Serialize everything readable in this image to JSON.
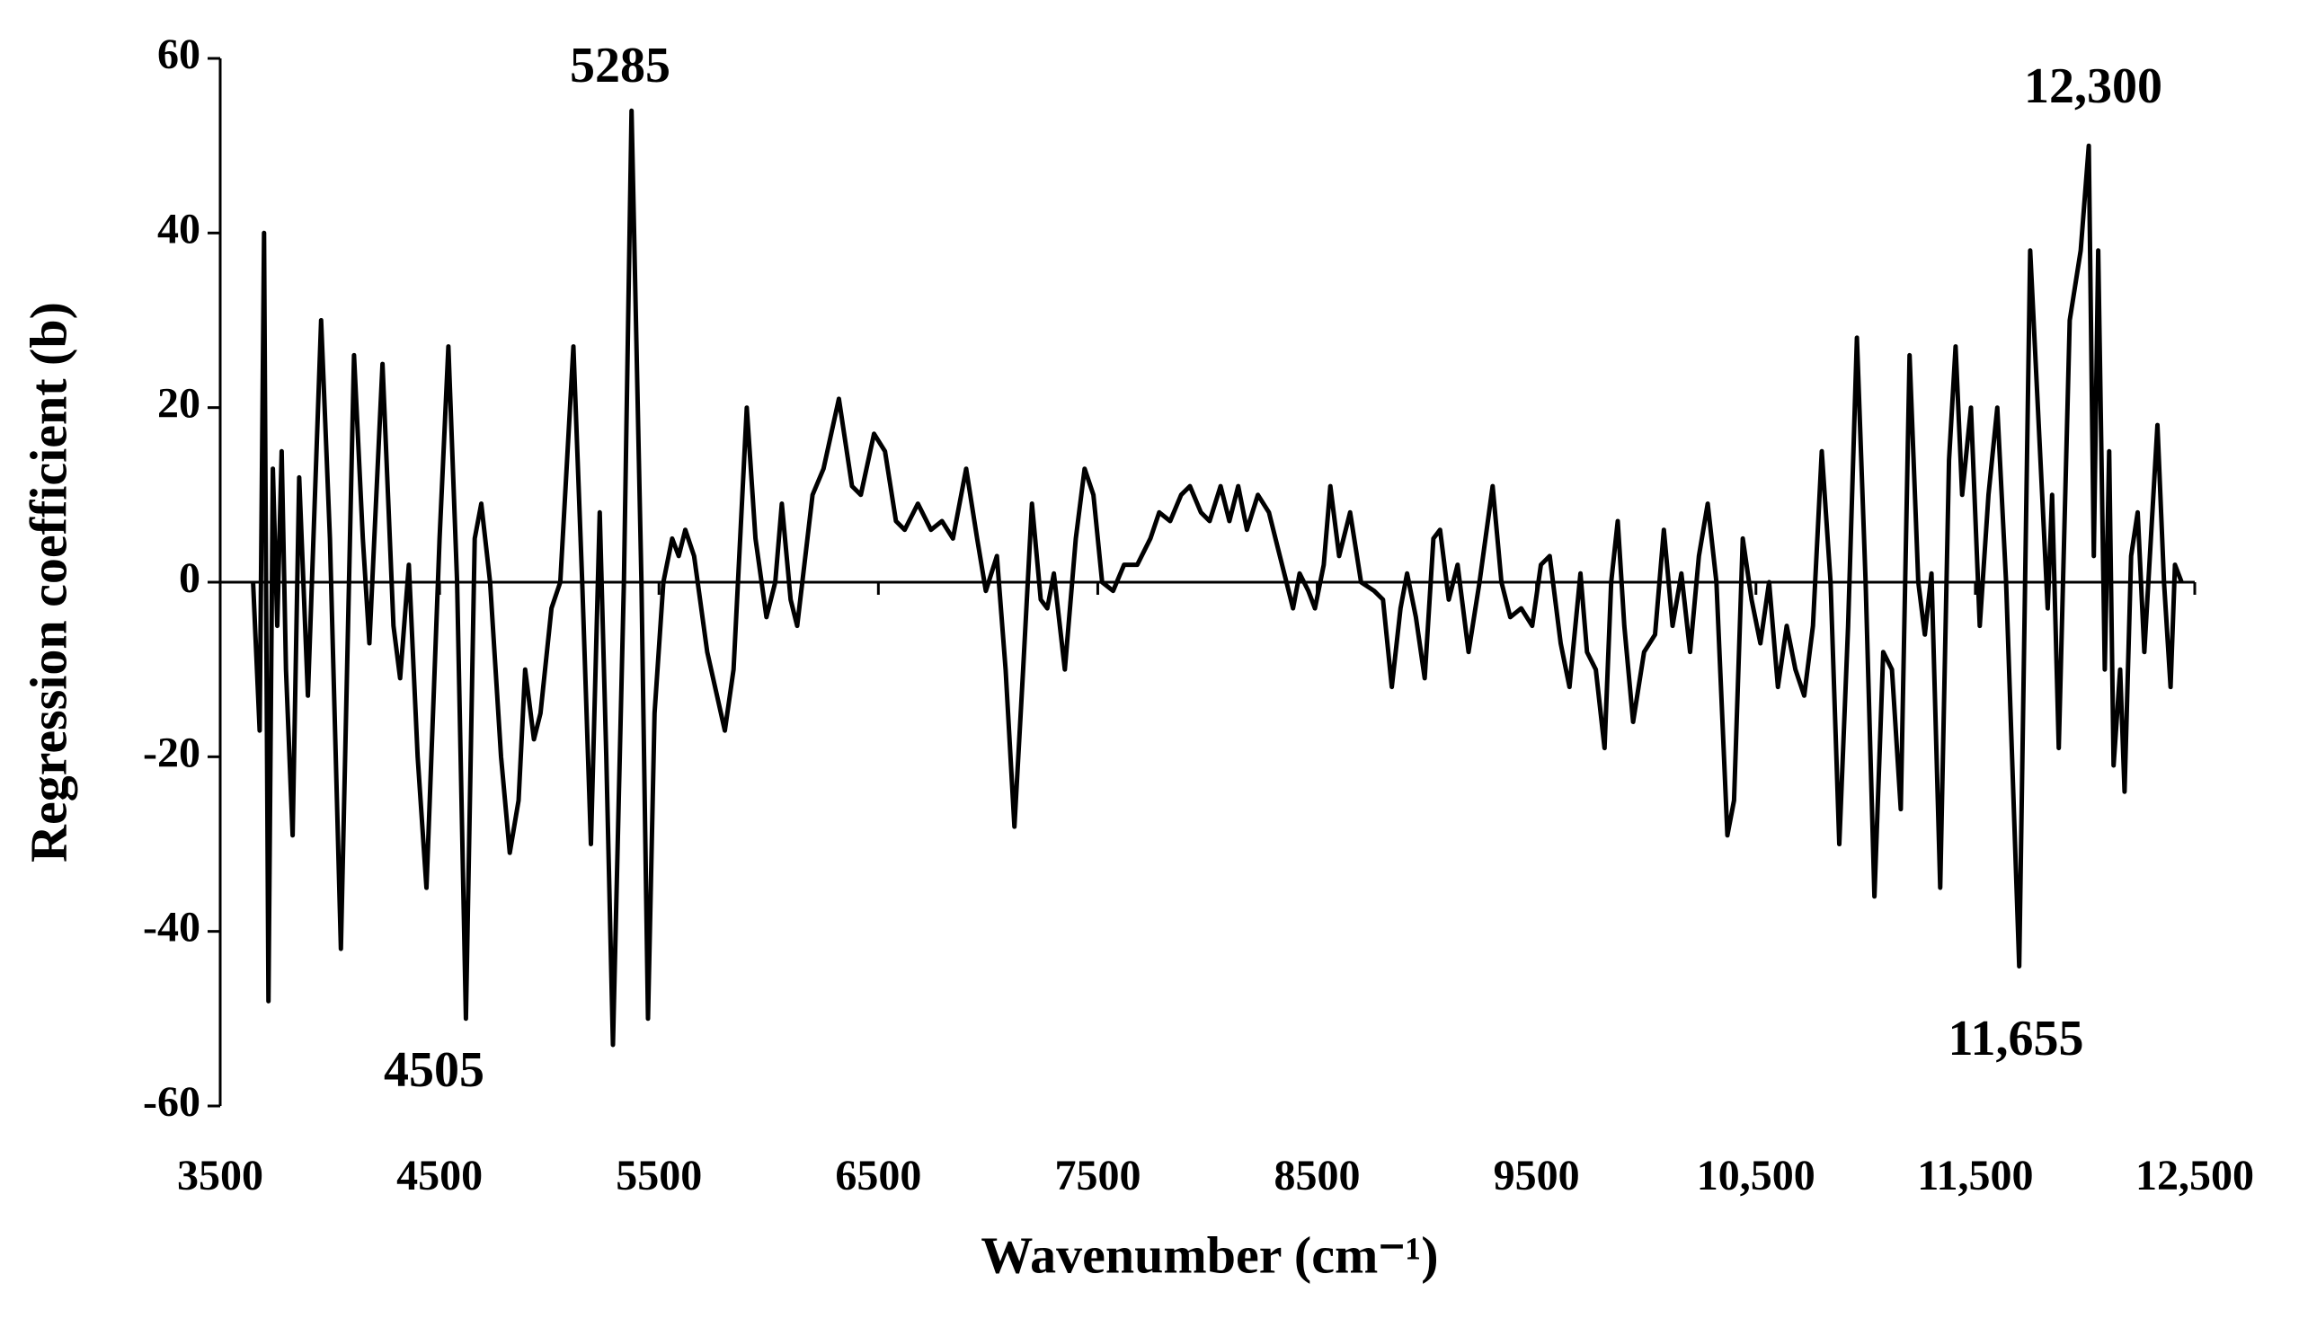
{
  "chart_data": {
    "type": "line",
    "x_label": "Wavenumber (cm⁻¹)",
    "y_label": "Regression coefficient (b)",
    "color": "#000000",
    "xlim": [
      3500,
      12500
    ],
    "ylim": [
      -60,
      60
    ],
    "xticks": [
      3500,
      4500,
      5500,
      6500,
      7500,
      8500,
      9500,
      {
        "value": 10500,
        "label": "10,500"
      },
      {
        "value": 11500,
        "label": "11,500"
      },
      {
        "value": 12500,
        "label": "12,500"
      }
    ],
    "yticks": [
      -60,
      -40,
      -20,
      0,
      20,
      40,
      60
    ],
    "annotations": [
      {
        "text": "5285"
      },
      {
        "text": "4505"
      },
      {
        "text": "12,300"
      },
      {
        "text": "11,655"
      }
    ],
    "x": [
      3650,
      3680,
      3700,
      3720,
      3740,
      3760,
      3780,
      3800,
      3830,
      3860,
      3900,
      3960,
      4000,
      4050,
      4110,
      4150,
      4180,
      4240,
      4290,
      4320,
      4360,
      4400,
      4440,
      4500,
      4540,
      4580,
      4620,
      4660,
      4690,
      4730,
      4780,
      4820,
      4860,
      4890,
      4930,
      4960,
      5010,
      5050,
      5110,
      5150,
      5190,
      5230,
      5260,
      5290,
      5340,
      5375,
      5420,
      5450,
      5480,
      5520,
      5560,
      5590,
      5620,
      5660,
      5720,
      5800,
      5840,
      5900,
      5940,
      5990,
      6030,
      6060,
      6100,
      6130,
      6200,
      6250,
      6320,
      6380,
      6420,
      6480,
      6530,
      6580,
      6620,
      6680,
      6740,
      6790,
      6840,
      6900,
      6950,
      6990,
      7040,
      7080,
      7120,
      7160,
      7200,
      7240,
      7270,
      7300,
      7350,
      7400,
      7440,
      7480,
      7520,
      7570,
      7620,
      7680,
      7740,
      7780,
      7830,
      7880,
      7920,
      7970,
      8010,
      8060,
      8100,
      8140,
      8180,
      8230,
      8280,
      8320,
      8360,
      8390,
      8420,
      8460,
      8490,
      8530,
      8560,
      8600,
      8650,
      8700,
      8760,
      8800,
      8840,
      8880,
      8910,
      8950,
      8990,
      9030,
      9060,
      9100,
      9140,
      9190,
      9240,
      9300,
      9340,
      9380,
      9430,
      9480,
      9520,
      9560,
      9610,
      9650,
      9700,
      9730,
      9770,
      9810,
      9840,
      9870,
      9900,
      9940,
      9990,
      10040,
      10080,
      10120,
      10160,
      10200,
      10240,
      10280,
      10320,
      10370,
      10400,
      10440,
      10480,
      10520,
      10560,
      10600,
      10640,
      10680,
      10720,
      10760,
      10800,
      10840,
      10880,
      10920,
      10960,
      11000,
      11040,
      11080,
      11120,
      11160,
      11200,
      11240,
      11270,
      11300,
      11340,
      11380,
      11410,
      11440,
      11480,
      11520,
      11560,
      11600,
      11640,
      11700,
      11750,
      11830,
      11850,
      11880,
      11930,
      11980,
      12017,
      12040,
      12060,
      12090,
      12110,
      12130,
      12160,
      12180,
      12210,
      12240,
      12270,
      12300,
      12330,
      12360,
      12390,
      12410,
      12440
    ],
    "values": [
      0,
      -17,
      40,
      -48,
      13,
      -5,
      15,
      -10,
      -29,
      12,
      -13,
      30,
      5,
      -42,
      26,
      5,
      -7,
      25,
      -5,
      -11,
      2,
      -20,
      -35,
      5,
      27,
      0,
      -50,
      5,
      9,
      0,
      -20,
      -31,
      -25,
      -10,
      -18,
      -15,
      -3,
      0,
      27,
      0,
      -30,
      8,
      -20,
      -53,
      0,
      54,
      0,
      -50,
      -15,
      0,
      5,
      3,
      6,
      3,
      -8,
      -17,
      -10,
      20,
      5,
      -4,
      0,
      9,
      -2,
      -5,
      10,
      13,
      21,
      11,
      10,
      17,
      15,
      7,
      6,
      9,
      6,
      7,
      5,
      13,
      5,
      -1,
      3,
      -10,
      -28,
      -10,
      9,
      -2,
      -3,
      1,
      -10,
      5,
      13,
      10,
      0,
      -1,
      2,
      2,
      5,
      8,
      7,
      10,
      11,
      8,
      7,
      11,
      7,
      11,
      6,
      10,
      8,
      4,
      0,
      -3,
      1,
      -1,
      -3,
      2,
      11,
      3,
      8,
      0,
      -1,
      -2,
      -12,
      -3,
      1,
      -4,
      -11,
      5,
      6,
      -2,
      2,
      -8,
      0,
      11,
      0,
      -4,
      -3,
      -5,
      2,
      3,
      -7,
      -12,
      1,
      -8,
      -10,
      -19,
      0,
      7,
      -5,
      -16,
      -8,
      -6,
      6,
      -5,
      1,
      -8,
      3,
      9,
      0,
      -29,
      -25,
      5,
      -2,
      -7,
      0,
      -12,
      -5,
      -10,
      -13,
      -5,
      15,
      0,
      -30,
      -5,
      28,
      0,
      -36,
      -8,
      -10,
      -26,
      26,
      0,
      -6,
      1,
      -35,
      14,
      27,
      10,
      20,
      -5,
      10,
      20,
      0,
      -44,
      38,
      -3,
      10,
      -19,
      30,
      38,
      50,
      3,
      38,
      -10,
      15,
      -21,
      -10,
      -24,
      3,
      8,
      -8,
      5,
      18,
      0,
      -12,
      2,
      0
    ]
  }
}
